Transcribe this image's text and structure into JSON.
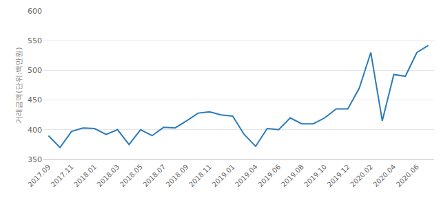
{
  "chart_data": {
    "type": "line",
    "y_label": "거래금액(단위:백만원)",
    "categories": [
      "2017.09",
      null,
      "2017.11",
      null,
      "2018.01",
      null,
      "2018.03",
      null,
      "2018.05",
      null,
      "2018.07",
      null,
      "2018.09",
      null,
      "2018.11",
      null,
      "2019.01",
      null,
      "2019.04",
      null,
      "2019.06",
      null,
      "2019.08",
      null,
      "2019.10",
      null,
      "2019.12",
      null,
      "2020.02",
      null,
      "2020.04",
      null,
      "2020.06",
      null
    ],
    "values": [
      390,
      370,
      397,
      403,
      402,
      392,
      400,
      375,
      400,
      390,
      404,
      403,
      415,
      428,
      430,
      425,
      423,
      392,
      372,
      402,
      400,
      420,
      410,
      410,
      420,
      435,
      435,
      470,
      530,
      415,
      493,
      490,
      530,
      542
    ],
    "color": "#2b7bb9",
    "ylim": [
      350,
      600
    ],
    "yticks": [
      350,
      400,
      450,
      500,
      550,
      600
    ],
    "grid": true
  }
}
